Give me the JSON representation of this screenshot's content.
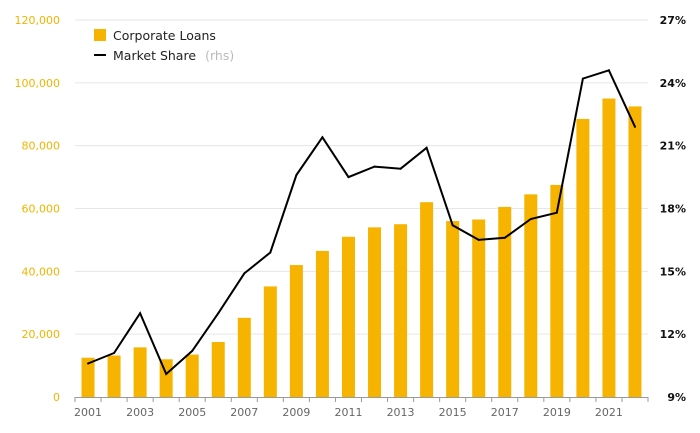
{
  "chart_data": {
    "type": "bar",
    "categories": [
      "2001",
      "2002",
      "2003",
      "2004",
      "2005",
      "2006",
      "2007",
      "2008",
      "2009",
      "2010",
      "2011",
      "2012",
      "2013",
      "2014",
      "2015",
      "2016",
      "2017",
      "2018",
      "2019",
      "2020",
      "2021",
      "2022"
    ],
    "x_tick_labels": [
      "2001",
      "2003",
      "2005",
      "2007",
      "2009",
      "2011",
      "2013",
      "2015",
      "2017",
      "2019",
      "2021"
    ],
    "series": [
      {
        "name": "Corporate Loans",
        "kind": "bar",
        "axis": "left",
        "color": "#f6b400",
        "values": [
          12500,
          13200,
          15800,
          12000,
          13500,
          17500,
          25200,
          35200,
          42000,
          46500,
          51000,
          54000,
          55000,
          62000,
          56000,
          56500,
          60500,
          64500,
          67500,
          88500,
          95000,
          92500
        ]
      },
      {
        "name": "Market Share",
        "name_suffix": "(rhs)",
        "kind": "line",
        "axis": "right",
        "color": "#000000",
        "values": [
          10.6,
          11.1,
          13.0,
          10.1,
          11.2,
          13.0,
          14.9,
          15.9,
          19.6,
          21.4,
          19.5,
          20.0,
          19.9,
          20.9,
          17.2,
          16.5,
          16.6,
          17.5,
          17.8,
          24.2,
          24.6,
          21.9
        ]
      }
    ],
    "y_left": {
      "min": 0,
      "max": 120000,
      "ticks": [
        "0",
        "20,000",
        "40,000",
        "60,000",
        "80,000",
        "100,000",
        "120,000"
      ],
      "color": "#f0b400"
    },
    "y_right": {
      "min": 9,
      "max": 27,
      "ticks": [
        "9%",
        "12%",
        "15%",
        "18%",
        "21%",
        "24%",
        "27%"
      ],
      "color": "#111111"
    },
    "grid": true,
    "legend_position": "top-left",
    "title": "",
    "xlabel": "",
    "ylabel": ""
  }
}
